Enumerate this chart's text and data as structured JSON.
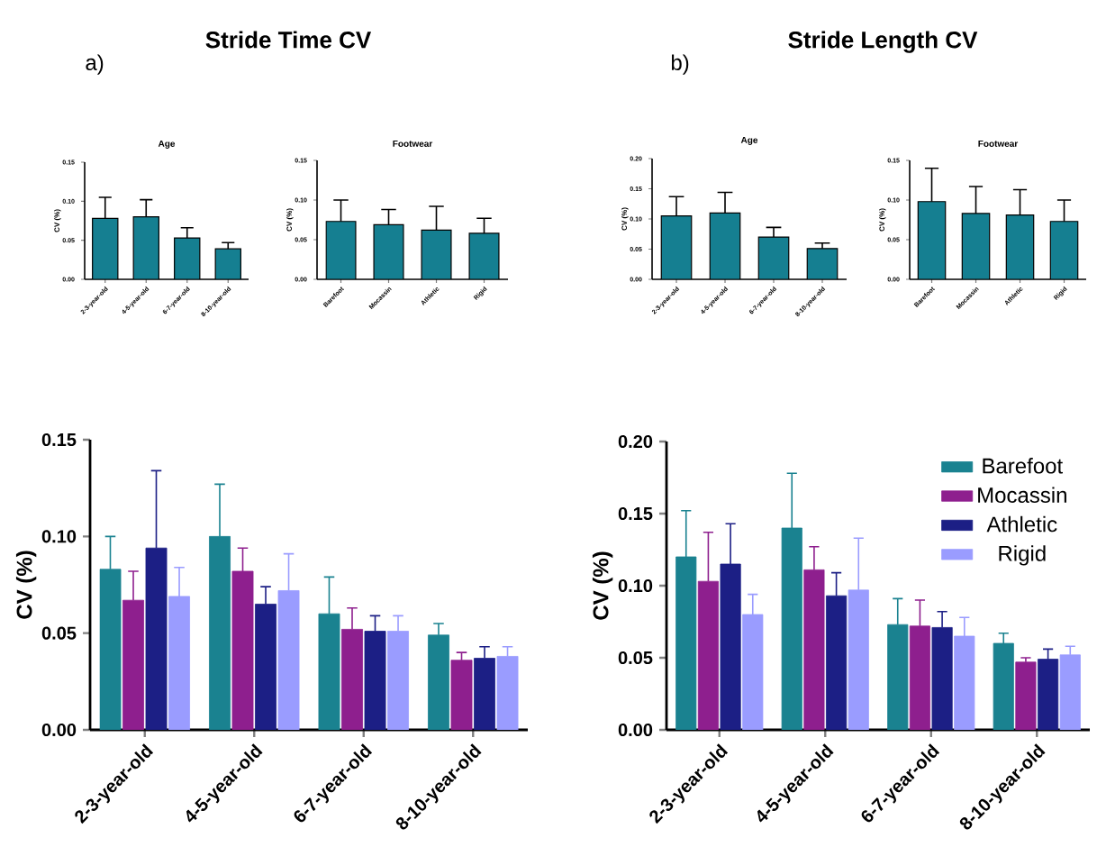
{
  "chart_data": [
    {
      "type": "bar",
      "title": "Age",
      "ylabel": "CV (%)",
      "annotations": [
        "Stride Time CV",
        "a)"
      ],
      "categories": [
        "2-3-year-old",
        "4-5-year-old",
        "6-7-year-old",
        "8-10-year-old"
      ],
      "values": [
        0.078,
        0.08,
        0.053,
        0.039
      ],
      "errors": [
        [
          0.078,
          0.105
        ],
        [
          0.08,
          0.102
        ],
        [
          0.053,
          0.066
        ],
        [
          0.039,
          0.047
        ]
      ],
      "color": "#157f91",
      "ylim": [
        0,
        0.15
      ],
      "yticks": [
        {
          "value": 0,
          "label": "0.00"
        },
        {
          "value": 0.05,
          "label": "0.05"
        },
        {
          "value": 0.1,
          "label": "0.10"
        },
        {
          "value": 0.15,
          "label": "0.15"
        }
      ]
    },
    {
      "type": "bar",
      "title": "Footwear",
      "ylabel": "CV (%)",
      "categories": [
        "Barefoot",
        "Mocassin",
        "Athletic",
        "Rigid"
      ],
      "values": [
        0.073,
        0.069,
        0.062,
        0.058
      ],
      "errors": [
        [
          0.073,
          0.1
        ],
        [
          0.069,
          0.088
        ],
        [
          0.062,
          0.092
        ],
        [
          0.058,
          0.077
        ]
      ],
      "color": "#157f91",
      "ylim": [
        0,
        0.15
      ],
      "yticks": [
        {
          "value": 0,
          "label": "0.00"
        },
        {
          "value": 0.05,
          "label": "0.05"
        },
        {
          "value": 0.1,
          "label": "0.10"
        },
        {
          "value": 0.15,
          "label": "0.15"
        }
      ]
    },
    {
      "type": "bar",
      "title": "Age",
      "ylabel": "CV (%)",
      "annotations": [
        "Stride Length CV",
        "b)"
      ],
      "categories": [
        "2-3-year-old",
        "4-5-year-old",
        "6-7-year-old",
        "8-10-year-old"
      ],
      "values": [
        0.105,
        0.11,
        0.07,
        0.051
      ],
      "errors": [
        [
          0.105,
          0.137
        ],
        [
          0.11,
          0.144
        ],
        [
          0.07,
          0.086
        ],
        [
          0.051,
          0.06
        ]
      ],
      "color": "#157f91",
      "ylim": [
        0,
        0.2
      ],
      "yticks": [
        {
          "value": 0,
          "label": "0.00"
        },
        {
          "value": 0.05,
          "label": "0.05"
        },
        {
          "value": 0.1,
          "label": "0.10"
        },
        {
          "value": 0.15,
          "label": "0.15"
        },
        {
          "value": 0.2,
          "label": "0.20"
        }
      ]
    },
    {
      "type": "bar",
      "title": "Footwear",
      "ylabel": "CV (%)",
      "categories": [
        "Barefoot",
        "Mocassin",
        "Athletic",
        "Rigid"
      ],
      "values": [
        0.098,
        0.083,
        0.081,
        0.073
      ],
      "errors": [
        [
          0.098,
          0.14
        ],
        [
          0.083,
          0.117
        ],
        [
          0.081,
          0.113
        ],
        [
          0.073,
          0.1
        ]
      ],
      "color": "#157f91",
      "ylim": [
        0,
        0.15
      ],
      "yticks": [
        {
          "value": 0,
          "label": "0.00"
        },
        {
          "value": 0.05,
          "label": "0.05"
        },
        {
          "value": 0.1,
          "label": "0.10"
        },
        {
          "value": 0.15,
          "label": "0.15"
        }
      ]
    },
    {
      "type": "bar",
      "ylabel": "CV (%)",
      "categories": [
        "2-3-year-old",
        "4-5-year-old",
        "6-7-year-old",
        "8-10-year-old"
      ],
      "ylim": [
        0,
        0.15
      ],
      "yticks": [
        {
          "value": 0,
          "label": "0.00"
        },
        {
          "value": 0.05,
          "label": "0.05"
        },
        {
          "value": 0.1,
          "label": "0.10"
        },
        {
          "value": 0.15,
          "label": "0.15"
        }
      ],
      "series": [
        {
          "color": "#1a8290",
          "values": [
            0.083,
            0.1,
            0.06,
            0.049
          ],
          "errors": [
            [
              0.083,
              0.1
            ],
            [
              0.1,
              0.127
            ],
            [
              0.06,
              0.079
            ],
            [
              0.049,
              0.055
            ]
          ]
        },
        {
          "color": "#8e1f8e",
          "values": [
            0.067,
            0.082,
            0.052,
            0.036
          ],
          "errors": [
            [
              0.067,
              0.082
            ],
            [
              0.082,
              0.094
            ],
            [
              0.052,
              0.063
            ],
            [
              0.036,
              0.04
            ]
          ]
        },
        {
          "color": "#1c1f85",
          "values": [
            0.094,
            0.065,
            0.051,
            0.037
          ],
          "errors": [
            [
              0.094,
              0.134
            ],
            [
              0.065,
              0.074
            ],
            [
              0.051,
              0.059
            ],
            [
              0.037,
              0.043
            ]
          ]
        },
        {
          "color": "#9a9cff",
          "values": [
            0.069,
            0.072,
            0.051,
            0.038
          ],
          "errors": [
            [
              0.069,
              0.084
            ],
            [
              0.072,
              0.091
            ],
            [
              0.051,
              0.059
            ],
            [
              0.038,
              0.043
            ]
          ]
        }
      ]
    },
    {
      "type": "bar",
      "ylabel": "CV (%)",
      "categories": [
        "2-3-year-old",
        "4-5-year-old",
        "6-7-year-old",
        "8-10-year-old"
      ],
      "ylim": [
        0,
        0.2
      ],
      "yticks": [
        {
          "value": 0,
          "label": "0.00"
        },
        {
          "value": 0.05,
          "label": "0.05"
        },
        {
          "value": 0.1,
          "label": "0.10"
        },
        {
          "value": 0.15,
          "label": "0.15"
        },
        {
          "value": 0.2,
          "label": "0.20"
        }
      ],
      "legend": "top right",
      "series": [
        {
          "name": "Barefoot",
          "color": "#1a8290",
          "values": [
            0.12,
            0.14,
            0.073,
            0.06
          ],
          "errors": [
            [
              0.12,
              0.152
            ],
            [
              0.14,
              0.178
            ],
            [
              0.073,
              0.091
            ],
            [
              0.06,
              0.067
            ]
          ]
        },
        {
          "name": "Mocassin",
          "color": "#8e1f8e",
          "values": [
            0.103,
            0.111,
            0.072,
            0.047
          ],
          "errors": [
            [
              0.103,
              0.137
            ],
            [
              0.111,
              0.127
            ],
            [
              0.072,
              0.09
            ],
            [
              0.047,
              0.05
            ]
          ]
        },
        {
          "name": "Athletic",
          "color": "#1c1f85",
          "values": [
            0.115,
            0.093,
            0.071,
            0.049
          ],
          "errors": [
            [
              0.115,
              0.143
            ],
            [
              0.093,
              0.109
            ],
            [
              0.071,
              0.082
            ],
            [
              0.049,
              0.056
            ]
          ]
        },
        {
          "name": "Rigid",
          "color": "#9a9cff",
          "values": [
            0.08,
            0.097,
            0.065,
            0.052
          ],
          "errors": [
            [
              0.08,
              0.094
            ],
            [
              0.097,
              0.133
            ],
            [
              0.065,
              0.078
            ],
            [
              0.052,
              0.058
            ]
          ]
        }
      ]
    }
  ]
}
